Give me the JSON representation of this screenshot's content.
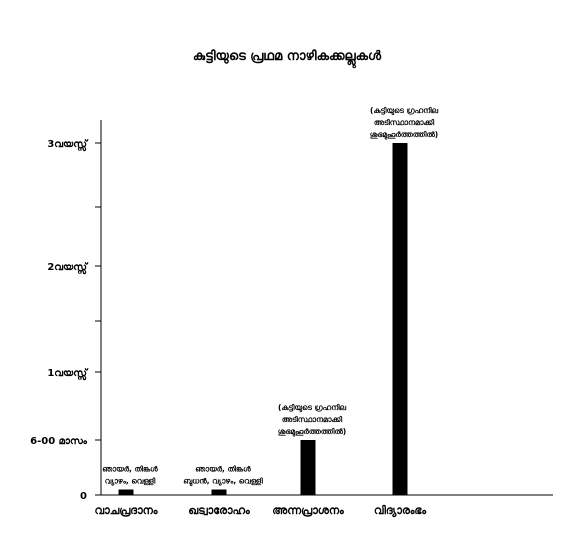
{
  "chart_data": {
    "type": "bar",
    "title": "കുട്ടിയുടെ പ്രഥമ നാഴികക്കല്ലുകൾ",
    "xlabel": "",
    "ylabel": "",
    "categories": [
      "വാചപ്രദാനം",
      "ഖട്വാരോഹം",
      "അന്നപ്രാശനം",
      "വിദ്യാരംഭം"
    ],
    "values": [
      0.05,
      0.05,
      0.5,
      3
    ],
    "ylim": [
      0,
      3.2
    ],
    "yticks": [
      {
        "value": 0,
        "label": "0"
      },
      {
        "value": 0.5,
        "label": "6-00 മാസം"
      },
      {
        "value": 1,
        "label": "1വയസ്സ്"
      },
      {
        "value": 2,
        "label": "2വയസ്സ്"
      },
      {
        "value": 3,
        "label": "3വയസ്സ്"
      }
    ],
    "minor_yticks": [
      1.5,
      2.5
    ],
    "bar_labels": [
      [
        "ഞായർ, തിങ്കൾ",
        "വ്യാഴം, വെള്ളി"
      ],
      [
        "ഞായർ, തിങ്കൾ",
        "ബുധൻ, വ്യാഴം, വെള്ളി"
      ],
      [
        "(കുട്ടിയുടെ ഗ്രഹനില",
        "അടിസ്ഥാനമാക്കി",
        "ശുഭമുഹൂർത്തത്തിൽ)"
      ],
      [
        "(കുട്ടിയുടെ ഗ്രഹനില",
        "അടിസ്ഥാനമാക്കി",
        "ശുഭമുഹൂർത്തത്തിൽ)"
      ]
    ],
    "grid": false,
    "legend": "none",
    "bar_color": "#000000"
  }
}
